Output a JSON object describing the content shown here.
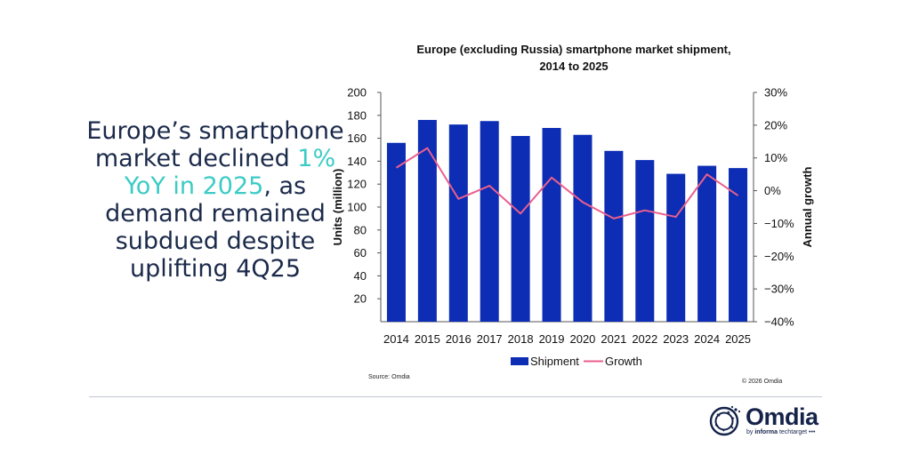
{
  "headline": {
    "before": "Europe’s smartphone market declined ",
    "highlight": "1% YoY in 2025",
    "after": ", as demand remained subdued despite uplifting 4Q25"
  },
  "colors": {
    "bar": "#0c2db4",
    "line": "#ea5f8c",
    "highlight": "#3ccbc5",
    "navy": "#15234b"
  },
  "chart_data": {
    "type": "bar",
    "title_line1": "Europe (excluding Russia) smartphone market shipment,",
    "title_line2": "2014 to 2025",
    "categories": [
      "2014",
      "2015",
      "2016",
      "2017",
      "2018",
      "2019",
      "2020",
      "2021",
      "2022",
      "2023",
      "2024",
      "2025"
    ],
    "series": [
      {
        "name": "Shipment",
        "type": "bar",
        "axis": "left",
        "values": [
          156,
          176,
          172,
          175,
          162,
          169,
          163,
          149,
          141,
          129,
          136,
          134
        ]
      },
      {
        "name": "Growth",
        "type": "line",
        "axis": "right",
        "values": [
          7,
          13,
          -2.5,
          1.5,
          -7,
          4,
          -3.5,
          -8.5,
          -6,
          -8,
          5,
          -1.5
        ]
      }
    ],
    "ylabel": "Units (million)",
    "ylabel_right": "Annual growth",
    "ylim": [
      0,
      200
    ],
    "ylim_right": [
      -40,
      30
    ],
    "yticks": [
      "20",
      "40",
      "60",
      "80",
      "100",
      "120",
      "140",
      "160",
      "180",
      "200"
    ],
    "yticks_right": [
      "30%",
      "20%",
      "10%",
      "0%",
      "−10%",
      "−20%",
      "−30%",
      "−40%"
    ],
    "legend": [
      "Shipment",
      "Growth"
    ],
    "legend_position": "bottom"
  },
  "footer": {
    "source": "Source: Omdia",
    "copyright": "© 2026 Omdia"
  },
  "logo": {
    "word": "Omdia",
    "sub_prefix": "by ",
    "sub_bold": "informa",
    "sub_rest": " techtarget"
  }
}
